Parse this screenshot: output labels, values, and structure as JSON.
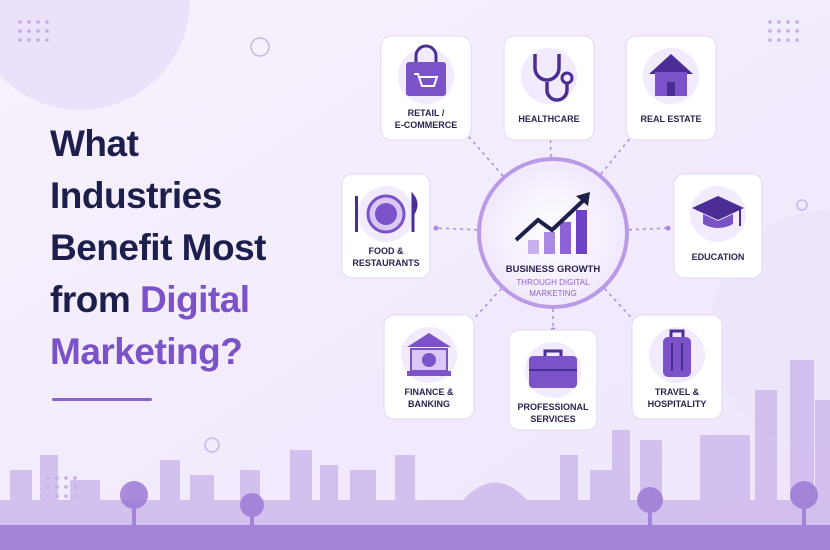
{
  "title": {
    "line1": "What",
    "line2": "Industries",
    "line3": "Benefit Most",
    "line4": "from",
    "line4_highlight": "Digital",
    "line5": "Marketing?"
  },
  "center": {
    "line1": "BUSINESS GROWTH",
    "line2": "THROUGH DIGITAL",
    "line3": "MARKETING"
  },
  "nodes": [
    {
      "label": [
        "RETAIL /",
        "E-COMMERCE"
      ]
    },
    {
      "label": [
        "HEALTHCARE"
      ]
    },
    {
      "label": [
        "REAL ESTATE"
      ]
    },
    {
      "label": [
        "FOOD &",
        "RESTAURANTS"
      ]
    },
    {
      "label": [
        "EDUCATION"
      ]
    },
    {
      "label": [
        "FINANCE &",
        "BANKING"
      ]
    },
    {
      "label": [
        "PROFESSIONAL",
        "SERVICES"
      ]
    },
    {
      "label": [
        "TRAVEL &",
        "HOSPITALITY"
      ]
    }
  ]
}
